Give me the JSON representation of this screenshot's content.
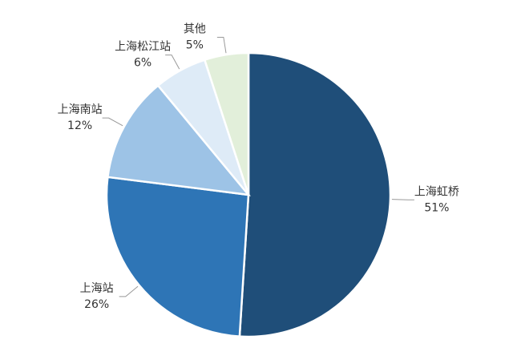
{
  "chart_data": {
    "type": "pie",
    "categories": [
      "上海虹桥",
      "上海站",
      "上海南站",
      "上海松江站",
      "其他"
    ],
    "values": [
      51,
      26,
      12,
      6,
      5
    ],
    "value_labels": [
      "51%",
      "26%",
      "12%",
      "6%",
      "5%"
    ],
    "colors": [
      "#1f4e79",
      "#2e75b6",
      "#9dc3e6",
      "#deebf7",
      "#e2efda"
    ]
  }
}
